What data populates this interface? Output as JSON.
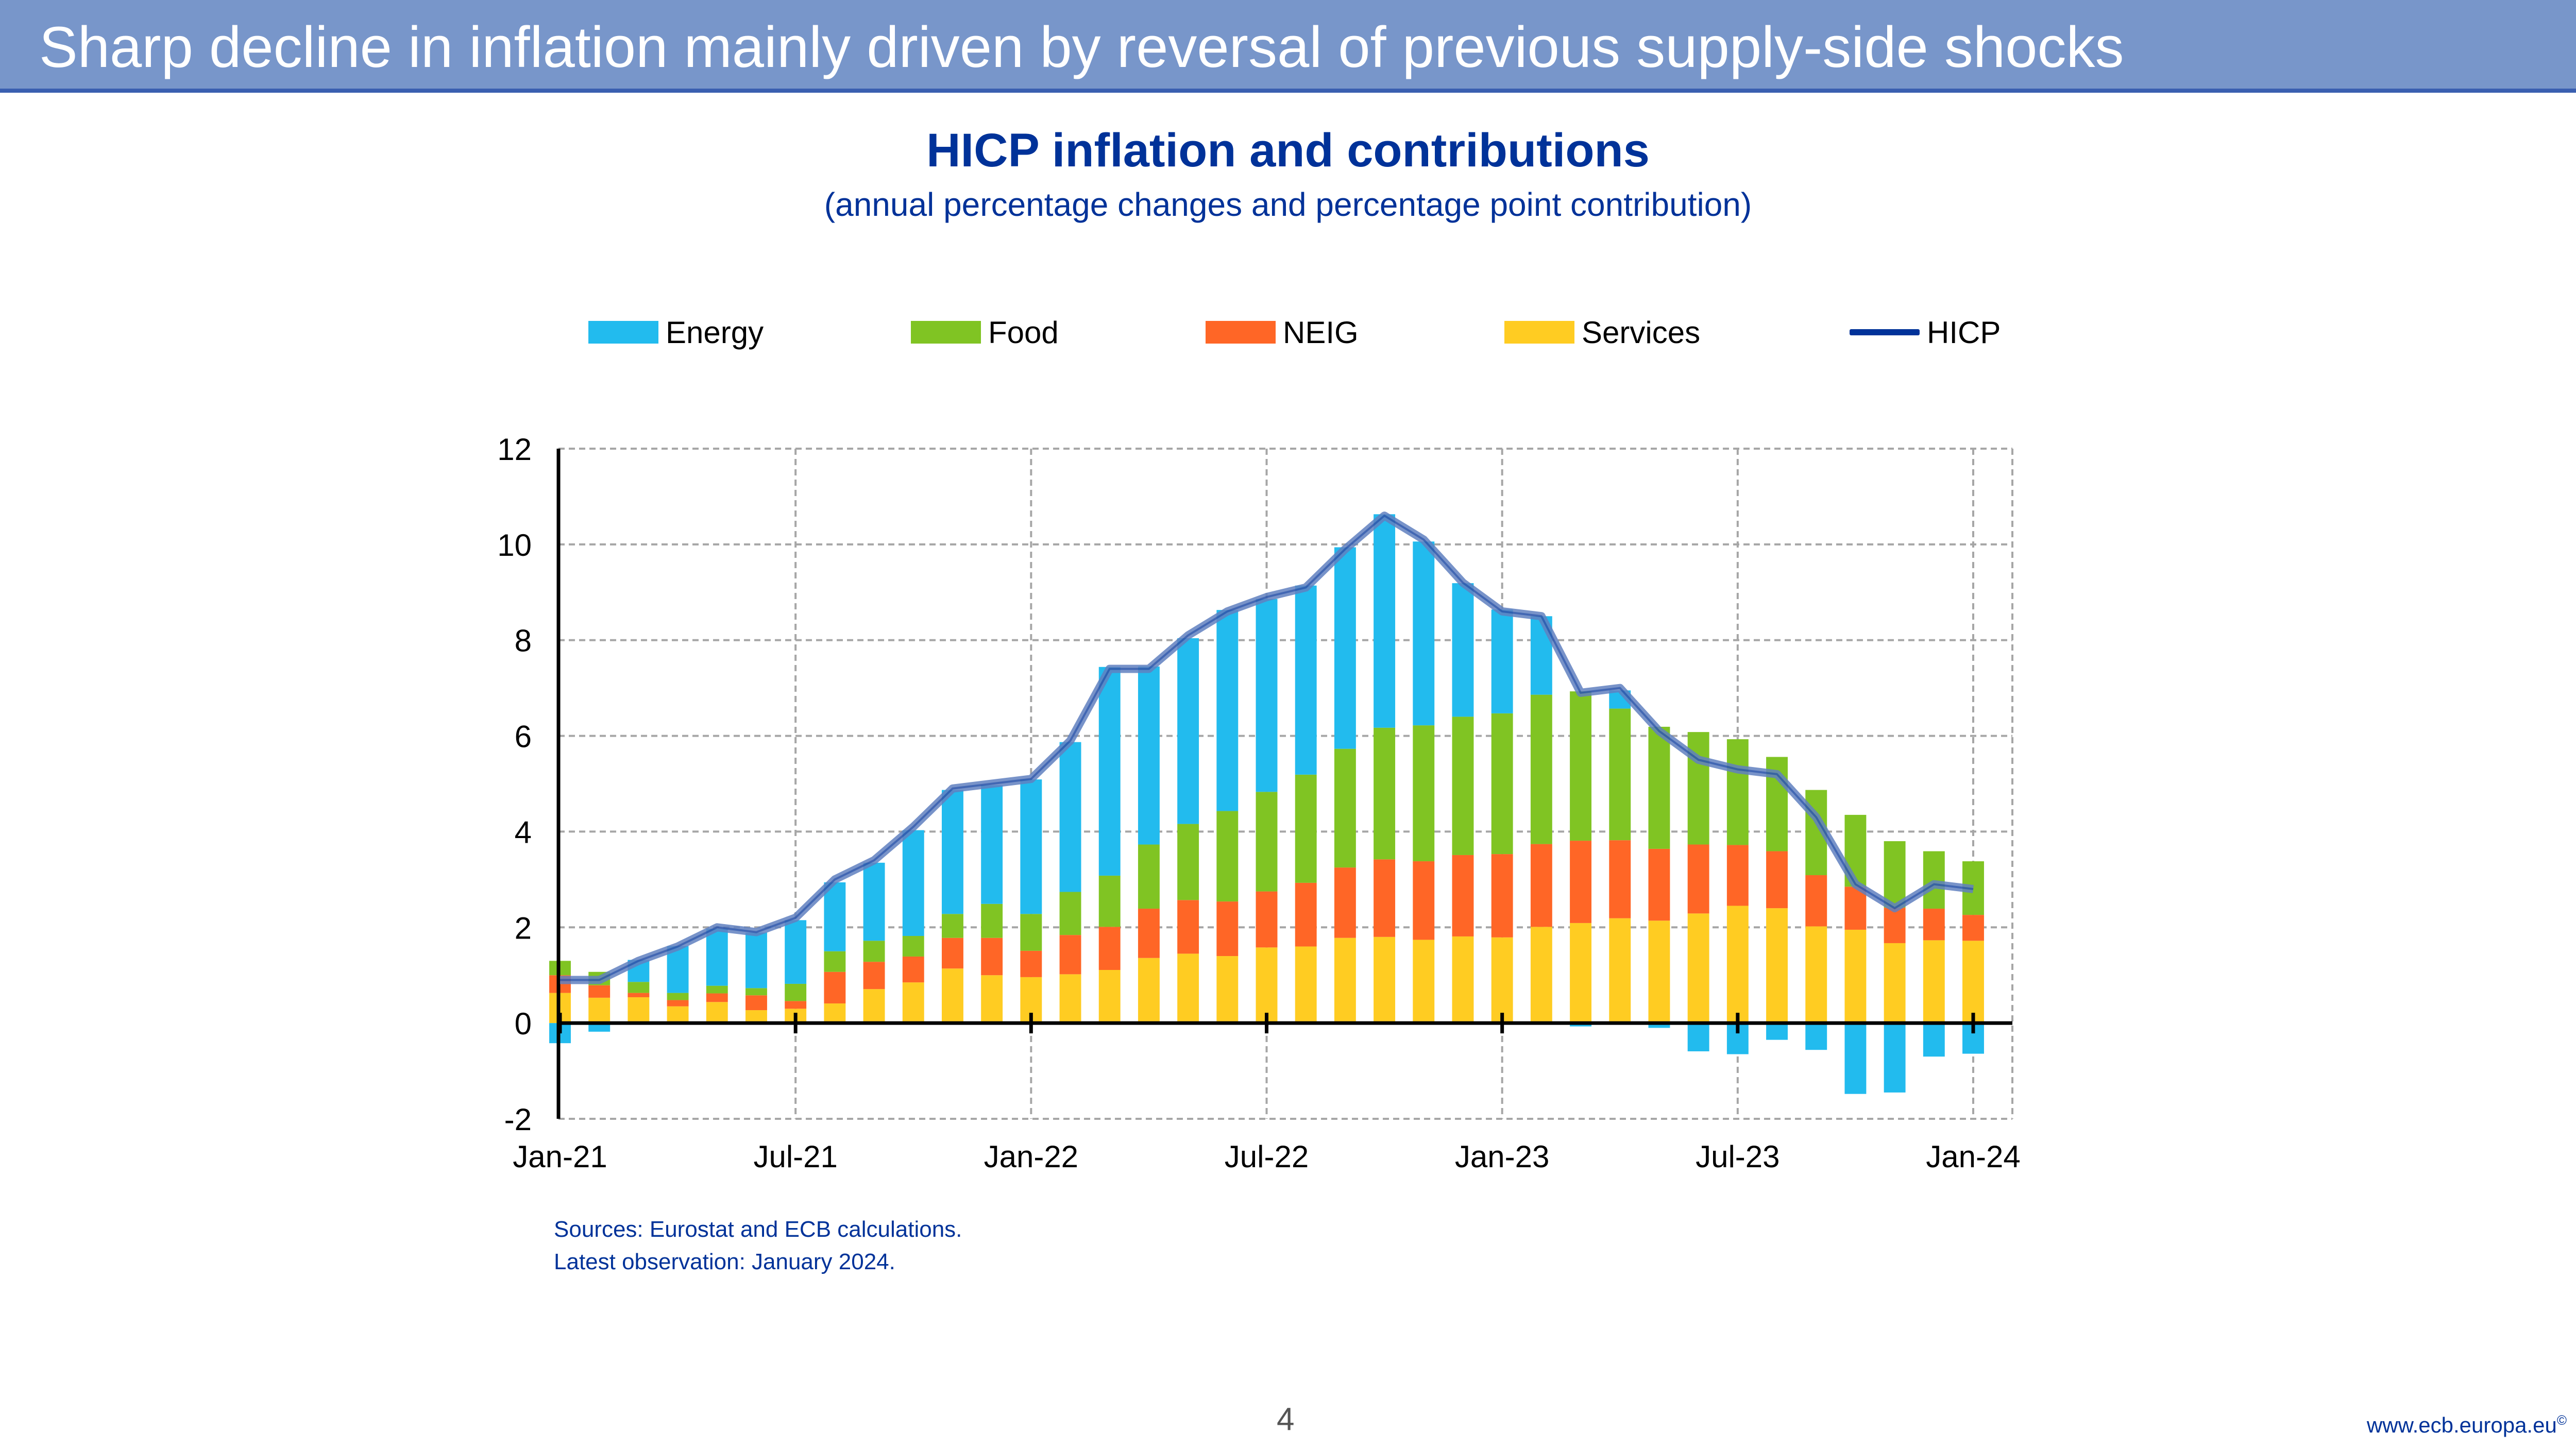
{
  "header": {
    "title": "Sharp decline in inflation mainly driven by reversal of previous supply-side shocks"
  },
  "footer": {
    "sources": "Sources: Eurostat and ECB calculations.",
    "latest": "Latest observation: January 2024.",
    "page_number": "4",
    "url": "www.ecb.europa.eu",
    "copyright": "©"
  },
  "colors": {
    "header_bg": "#7896CA",
    "title_blue": "#003299",
    "energy": "#22BBEE",
    "food": "#80C423",
    "neig": "#FF6626",
    "services": "#FFCC22",
    "hicp": "#003299"
  },
  "chart_data": {
    "type": "bar",
    "stacked": true,
    "title": "HICP inflation and contributions",
    "subtitle": "(annual percentage changes and percentage point contribution)",
    "xlabel": "",
    "ylabel": "",
    "ylim": [
      -2,
      12
    ],
    "yticks": [
      12,
      10,
      8,
      6,
      4,
      2,
      0,
      -2
    ],
    "grid": true,
    "legend_position": "top",
    "categories": [
      "Jan-21",
      "Feb-21",
      "Mar-21",
      "Apr-21",
      "May-21",
      "Jun-21",
      "Jul-21",
      "Aug-21",
      "Sep-21",
      "Oct-21",
      "Nov-21",
      "Dec-21",
      "Jan-22",
      "Feb-22",
      "Mar-22",
      "Apr-22",
      "May-22",
      "Jun-22",
      "Jul-22",
      "Aug-22",
      "Sep-22",
      "Oct-22",
      "Nov-22",
      "Dec-22",
      "Jan-23",
      "Feb-23",
      "Mar-23",
      "Apr-23",
      "May-23",
      "Jun-23",
      "Jul-23",
      "Aug-23",
      "Sep-23",
      "Oct-23",
      "Nov-23",
      "Dec-23",
      "Jan-24"
    ],
    "xtick_labels": [
      "Jan-21",
      "Jul-21",
      "Jan-22",
      "Jul-22",
      "Jan-23",
      "Jul-23",
      "Jan-24"
    ],
    "xtick_indices": [
      0,
      6,
      12,
      18,
      24,
      30,
      36
    ],
    "series": [
      {
        "name": "Services",
        "kind": "bar",
        "values": [
          0.63,
          0.53,
          0.54,
          0.35,
          0.44,
          0.27,
          0.3,
          0.41,
          0.71,
          0.85,
          1.14,
          1.0,
          0.96,
          1.02,
          1.11,
          1.36,
          1.45,
          1.4,
          1.58,
          1.6,
          1.78,
          1.8,
          1.74,
          1.81,
          1.79,
          2.01,
          2.09,
          2.19,
          2.14,
          2.29,
          2.45,
          2.4,
          2.02,
          1.95,
          1.67,
          1.73,
          1.72
        ]
      },
      {
        "name": "NEIG",
        "kind": "bar",
        "values": [
          0.37,
          0.26,
          0.09,
          0.13,
          0.18,
          0.31,
          0.16,
          0.66,
          0.57,
          0.54,
          0.64,
          0.78,
          0.55,
          0.82,
          0.9,
          1.03,
          1.12,
          1.14,
          1.17,
          1.33,
          1.47,
          1.62,
          1.64,
          1.7,
          1.74,
          1.73,
          1.72,
          1.63,
          1.5,
          1.44,
          1.27,
          1.19,
          1.07,
          0.9,
          0.74,
          0.66,
          0.54
        ]
      },
      {
        "name": "Food",
        "kind": "bar",
        "values": [
          0.3,
          0.28,
          0.23,
          0.15,
          0.16,
          0.15,
          0.36,
          0.43,
          0.44,
          0.43,
          0.5,
          0.71,
          0.77,
          0.9,
          1.07,
          1.34,
          1.59,
          1.89,
          2.08,
          2.26,
          2.48,
          2.75,
          2.84,
          2.89,
          2.94,
          3.12,
          3.12,
          2.75,
          2.55,
          2.35,
          2.21,
          1.97,
          1.78,
          1.5,
          1.39,
          1.2,
          1.12
        ]
      },
      {
        "name": "Energy",
        "kind": "bar",
        "values": [
          -0.42,
          -0.18,
          0.46,
          0.98,
          1.19,
          1.16,
          1.33,
          1.44,
          1.63,
          2.21,
          2.59,
          2.48,
          2.81,
          3.13,
          4.36,
          3.72,
          3.88,
          4.2,
          4.03,
          3.95,
          4.21,
          4.46,
          3.84,
          2.79,
          2.17,
          1.64,
          -0.07,
          0.38,
          -0.1,
          -0.59,
          -0.65,
          -0.35,
          -0.56,
          -1.48,
          -1.45,
          -0.7,
          -0.64
        ]
      },
      {
        "name": "HICP",
        "kind": "line",
        "values": [
          0.9,
          0.9,
          1.3,
          1.6,
          2.0,
          1.9,
          2.2,
          3.0,
          3.4,
          4.1,
          4.9,
          5.0,
          5.1,
          5.9,
          7.4,
          7.4,
          8.1,
          8.6,
          8.9,
          9.1,
          9.9,
          10.6,
          10.1,
          9.2,
          8.6,
          8.5,
          6.9,
          7.0,
          6.1,
          5.5,
          5.3,
          5.2,
          4.3,
          2.9,
          2.4,
          2.9,
          2.8
        ]
      }
    ],
    "legend": [
      {
        "name": "Energy",
        "kind": "swatch"
      },
      {
        "name": "Food",
        "kind": "swatch"
      },
      {
        "name": "NEIG",
        "kind": "swatch"
      },
      {
        "name": "Services",
        "kind": "swatch"
      },
      {
        "name": "HICP",
        "kind": "line"
      }
    ]
  }
}
